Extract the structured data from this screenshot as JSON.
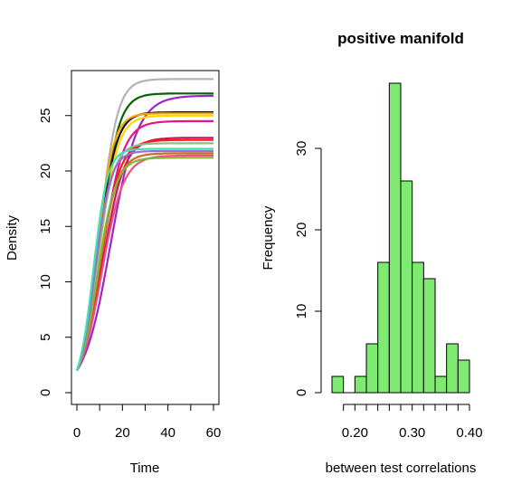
{
  "chart_data": [
    {
      "type": "line",
      "title": "",
      "xlabel": "Time",
      "ylabel": "Density",
      "xlim": [
        0,
        60
      ],
      "ylim": [
        0,
        28
      ],
      "x_ticks": [
        0,
        20,
        40,
        60
      ],
      "y_ticks": [
        0,
        5,
        10,
        15,
        20,
        25
      ],
      "x_tick_labels": [
        "0",
        "20",
        "40",
        "60"
      ],
      "y_tick_labels": [
        "0",
        "5",
        "10",
        "15",
        "20",
        "25"
      ],
      "grid": false,
      "legend": "none",
      "curve_model": "logistic: y(t) = K / (1 + ((K - 2) / 2) * exp(-r t))",
      "series": [
        {
          "color": "#b3b3b3",
          "K": 28.3,
          "r": 0.26
        },
        {
          "color": "#006400",
          "K": 27.0,
          "r": 0.25
        },
        {
          "color": "#9a28c8",
          "K": 26.8,
          "r": 0.17
        },
        {
          "color": "#111111",
          "K": 25.3,
          "r": 0.26
        },
        {
          "color": "#ffa500",
          "K": 25.2,
          "r": 0.28
        },
        {
          "color": "#ffd700",
          "K": 25.0,
          "r": 0.25
        },
        {
          "color": "#e8138a",
          "K": 24.5,
          "r": 0.22
        },
        {
          "color": "#c2185b",
          "K": 23.0,
          "r": 0.21
        },
        {
          "color": "#ff1a1a",
          "K": 22.8,
          "r": 0.23
        },
        {
          "color": "#8fbc8f",
          "K": 22.5,
          "r": 0.27
        },
        {
          "color": "#d2691e",
          "K": 21.6,
          "r": 0.24
        },
        {
          "color": "#f0507a",
          "K": 21.4,
          "r": 0.21
        },
        {
          "color": "#7cb83a",
          "K": 21.2,
          "r": 0.25
        },
        {
          "color": "#9370db",
          "K": 21.8,
          "r": 0.29
        },
        {
          "color": "#40e0b0",
          "K": 22.0,
          "r": 0.32
        }
      ]
    },
    {
      "type": "bar",
      "subtype": "histogram",
      "title": "positive manifold",
      "xlabel": "between test correlations",
      "ylabel": "Frequency",
      "xlim": [
        0.16,
        0.4
      ],
      "ylim": [
        0,
        38
      ],
      "x_ticks": [
        0.2,
        0.3,
        0.4
      ],
      "x_tick_labels": [
        "0.20",
        "0.30",
        "0.40"
      ],
      "y_ticks": [
        0,
        10,
        20,
        30
      ],
      "y_tick_labels": [
        "0",
        "10",
        "20",
        "30"
      ],
      "bar_color": "#7eea72",
      "bin_width": 0.02,
      "bins": [
        {
          "x0": 0.16,
          "x1": 0.18,
          "count": 2
        },
        {
          "x0": 0.18,
          "x1": 0.2,
          "count": 0
        },
        {
          "x0": 0.2,
          "x1": 0.22,
          "count": 2
        },
        {
          "x0": 0.22,
          "x1": 0.24,
          "count": 6
        },
        {
          "x0": 0.24,
          "x1": 0.26,
          "count": 16
        },
        {
          "x0": 0.26,
          "x1": 0.28,
          "count": 38
        },
        {
          "x0": 0.28,
          "x1": 0.3,
          "count": 26
        },
        {
          "x0": 0.3,
          "x1": 0.32,
          "count": 16
        },
        {
          "x0": 0.32,
          "x1": 0.34,
          "count": 14
        },
        {
          "x0": 0.34,
          "x1": 0.36,
          "count": 2
        },
        {
          "x0": 0.36,
          "x1": 0.38,
          "count": 6
        },
        {
          "x0": 0.38,
          "x1": 0.4,
          "count": 4
        }
      ],
      "grid": false,
      "legend": "none"
    }
  ]
}
